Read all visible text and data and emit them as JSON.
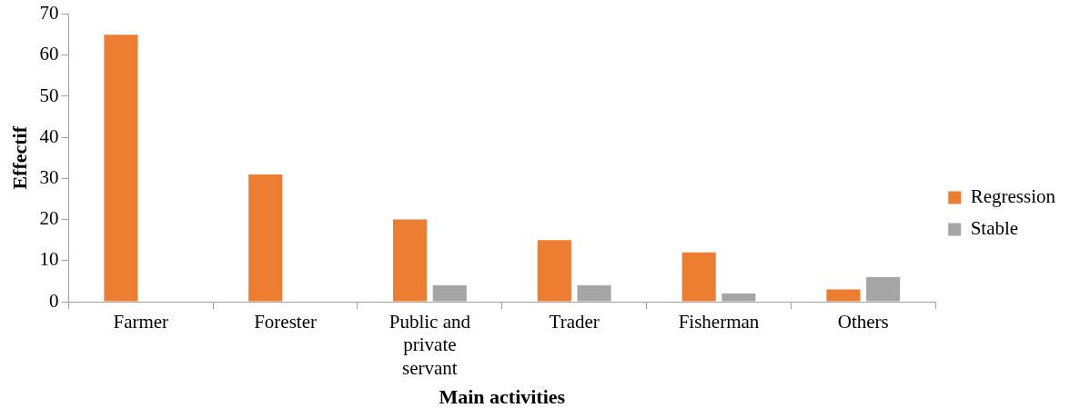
{
  "chart_data": {
    "type": "bar",
    "xlabel": "Main activities",
    "ylabel": "Effectif",
    "categories": [
      "Farmer",
      "Forester",
      "Public and private servant",
      "Trader",
      "Fisherman",
      "Others"
    ],
    "series": [
      {
        "name": "Regression",
        "color": "#ed7d31",
        "values": [
          65,
          31,
          20,
          15,
          12,
          3
        ]
      },
      {
        "name": "Stable",
        "color": "#a5a5a5",
        "values": [
          0,
          0,
          4,
          4,
          2,
          6
        ]
      }
    ],
    "ylim": [
      0,
      70
    ],
    "yticks": [
      0,
      10,
      20,
      30,
      40,
      50,
      60,
      70
    ],
    "grid": false,
    "legend": "right"
  }
}
